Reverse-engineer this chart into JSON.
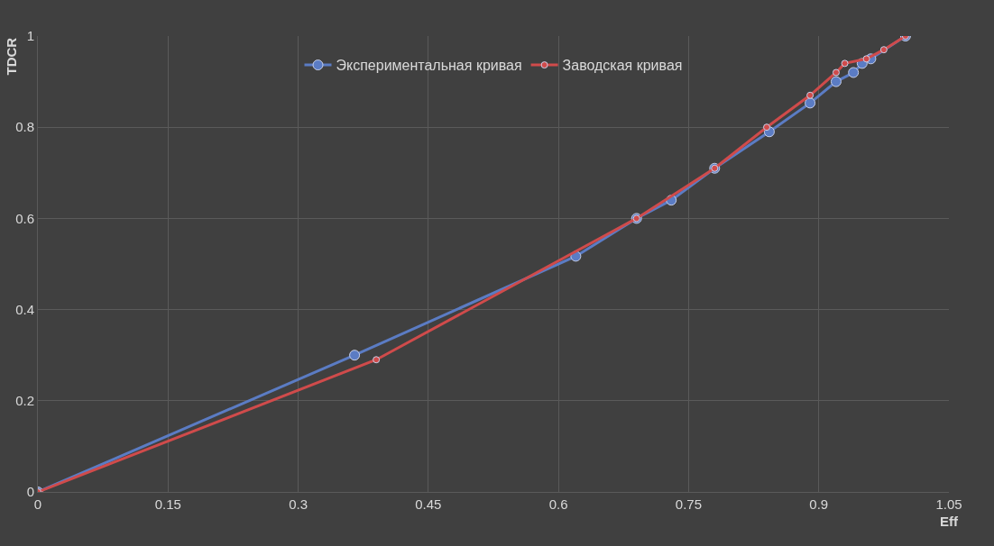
{
  "chart_data": {
    "type": "line",
    "xlabel": "Eff",
    "ylabel": "TDCR",
    "xlim": [
      0,
      1.05
    ],
    "xticks": [
      0,
      0.15,
      0.3,
      0.45,
      0.6,
      0.75,
      0.9,
      1.05
    ],
    "ylim": [
      0,
      1
    ],
    "yticks": [
      0,
      0.2,
      0.4,
      0.6,
      0.8,
      1
    ],
    "grid": true,
    "legend": "top",
    "marker": "circle",
    "line_style": "solid",
    "series": [
      {
        "name": "Экспериментальная кривая",
        "color": "#5b7cc4",
        "x": [
          0,
          0.365,
          0.62,
          0.69,
          0.73,
          0.78,
          0.843,
          0.89,
          0.92,
          0.94,
          0.95,
          0.96,
          1
        ],
        "values": [
          0,
          0.3,
          0.517,
          0.6,
          0.64,
          0.71,
          0.79,
          0.853,
          0.9,
          0.92,
          0.94,
          0.95,
          1
        ]
      },
      {
        "name": "Заводская кривая",
        "color": "#d04b4b",
        "x": [
          0,
          0.39,
          0.69,
          0.78,
          0.84,
          0.89,
          0.92,
          0.93,
          0.955,
          0.975,
          1
        ],
        "values": [
          0,
          0.29,
          0.6,
          0.71,
          0.8,
          0.87,
          0.92,
          0.94,
          0.95,
          0.97,
          1
        ]
      }
    ]
  }
}
